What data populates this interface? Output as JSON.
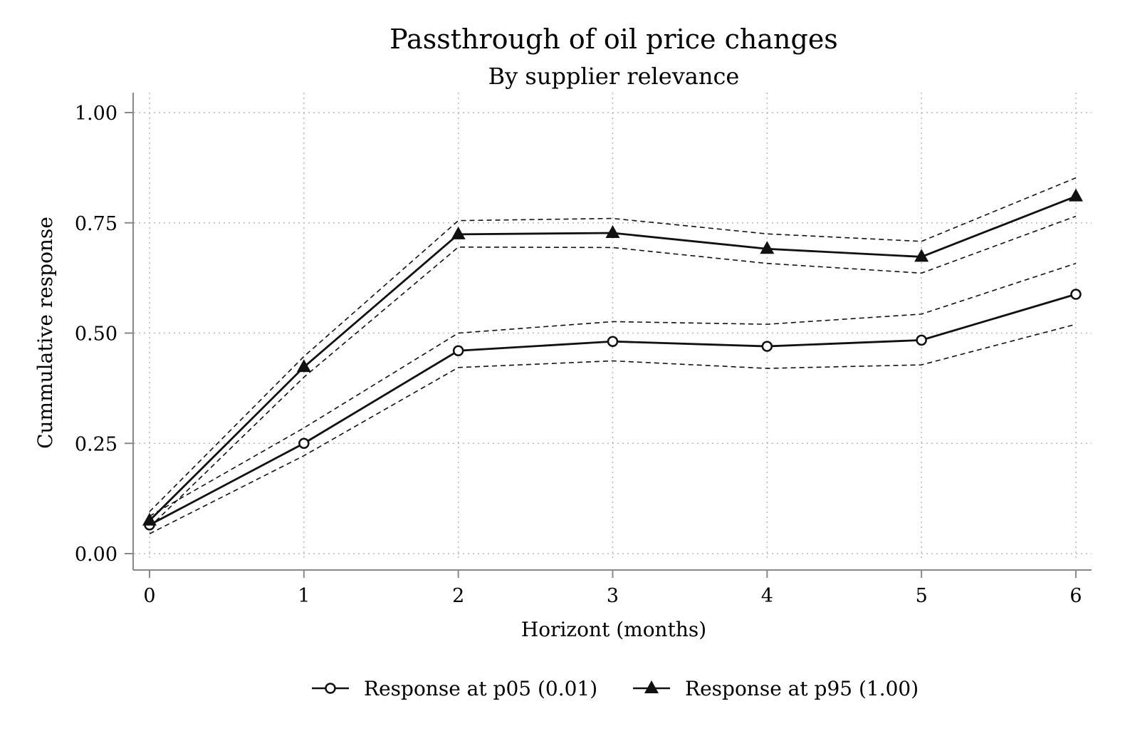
{
  "chart_data": {
    "type": "line",
    "title": "Passthrough of oil price changes",
    "subtitle": "By supplier relevance",
    "xlabel": "Horizont (months)",
    "ylabel": "Cummulative response",
    "x": [
      0,
      1,
      2,
      3,
      4,
      5,
      6
    ],
    "x_ticks": [
      "0",
      "1",
      "2",
      "3",
      "4",
      "5",
      "6"
    ],
    "y_ticks": [
      "0.00",
      "0.25",
      "0.50",
      "0.75",
      "1.00"
    ],
    "y_tick_values": [
      0,
      0.25,
      0.5,
      0.75,
      1.0
    ],
    "xlim": [
      0,
      6
    ],
    "ylim": [
      0,
      1
    ],
    "grid": true,
    "legend_position": "bottom",
    "series": [
      {
        "name": "Response at p05 (0.01)",
        "marker": "circle-open",
        "values": [
          0.065,
          0.25,
          0.46,
          0.481,
          0.47,
          0.484,
          0.588
        ],
        "ci_upper": [
          0.085,
          0.285,
          0.5,
          0.526,
          0.52,
          0.543,
          0.658
        ],
        "ci_lower": [
          0.045,
          0.222,
          0.422,
          0.437,
          0.42,
          0.428,
          0.52
        ]
      },
      {
        "name": "Response at p95 (1.00)",
        "marker": "triangle-filled",
        "values": [
          0.075,
          0.423,
          0.724,
          0.727,
          0.691,
          0.673,
          0.81
        ],
        "ci_upper": [
          0.095,
          0.447,
          0.755,
          0.76,
          0.725,
          0.708,
          0.852
        ],
        "ci_lower": [
          0.06,
          0.4,
          0.695,
          0.694,
          0.658,
          0.636,
          0.765
        ]
      }
    ]
  }
}
